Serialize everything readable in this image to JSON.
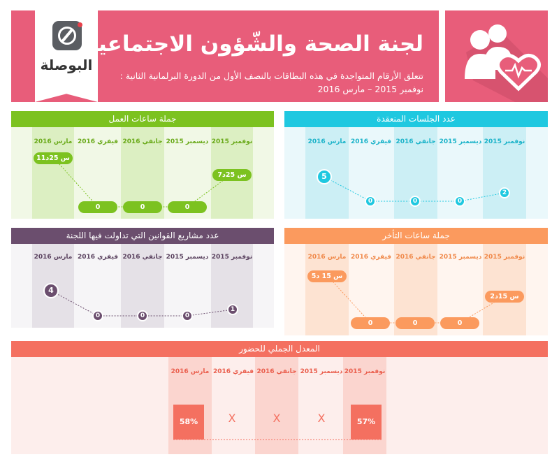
{
  "header": {
    "title": "لجنة الصحة والشّؤون الاجتماعية",
    "subtitle_line1": "تتعلق الأرقام المتواجدة في هذه البطاقات بالنصف الأول من الدورة البرلمانية الثانية :",
    "subtitle_line2": "نوفمبر 2015 – مارس 2016",
    "logo_text": "البوصلة",
    "icon": "people-heart-icon",
    "color": "#e85d7a"
  },
  "months": [
    "نوفمبر 2015",
    "ديسمبر 2015",
    "جانفي 2016",
    "فيفري 2016",
    "مارس 2016"
  ],
  "panels": {
    "work_hours": {
      "title": "جملة ساعات العمل",
      "color": "#7cc220",
      "values": [
        "7س 25د",
        "0",
        "0",
        "0",
        "11س 25د"
      ]
    },
    "sessions": {
      "title": "عدد الجلسات المنعقدة",
      "color": "#1fc8e0",
      "values": [
        "2",
        "0",
        "0",
        "0",
        "5"
      ]
    },
    "bills": {
      "title": "عدد مشاريع القوانين التي تداولت فيها اللجنة",
      "color": "#6b4e6e",
      "values": [
        "1",
        "0",
        "0",
        "0",
        "4"
      ]
    },
    "delay": {
      "title": "جملة ساعات التأخر",
      "color": "#fb9a5e",
      "values": [
        "2س 15د",
        "0",
        "0",
        "0",
        "5س 15 د"
      ]
    },
    "attendance": {
      "title": "المعدل الجملي للحضور",
      "color": "#f47060",
      "values": [
        "57%",
        "X",
        "X",
        "X",
        "58%"
      ],
      "percent_values": [
        57,
        null,
        null,
        null,
        58
      ]
    }
  }
}
